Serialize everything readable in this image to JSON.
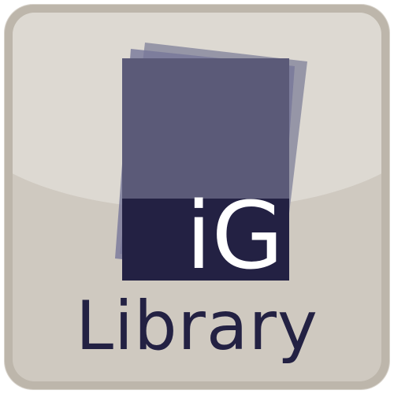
{
  "app_icon": {
    "logo_text": "iG",
    "label": "Library",
    "colors": {
      "frame": "#bdb6ab",
      "face": "#cfc9c0",
      "gloss": "#ddd9d2",
      "page_back": "#8a8aa0",
      "page_front": "#5b5a78",
      "page_dark": "#232143",
      "logo_text_color": "#ffffff",
      "label_color": "#232143"
    },
    "icons": [
      "stacked-pages-icon"
    ]
  }
}
